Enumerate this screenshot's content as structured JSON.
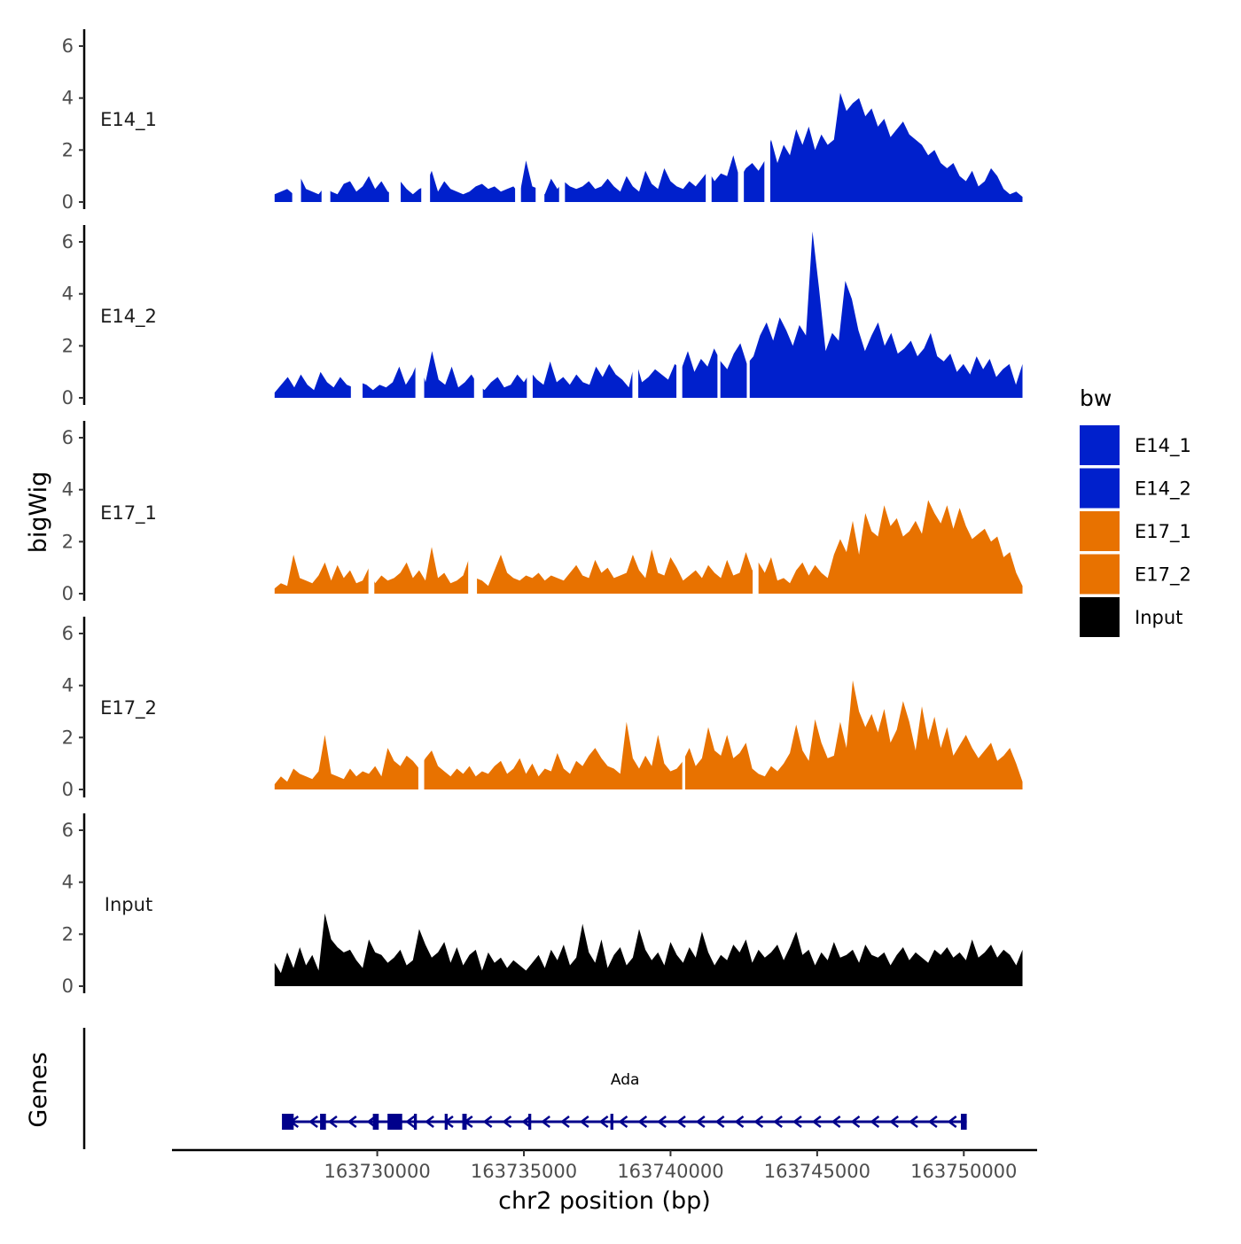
{
  "chart_data": {
    "type": "area",
    "chromosome": "chr2",
    "xlabel": "chr2 position (bp)",
    "ylabel": "bigWig",
    "genes_label": "Genes",
    "xlim": [
      163723000,
      163752500
    ],
    "x_ticks": [
      163730000,
      163735000,
      163740000,
      163745000,
      163750000
    ],
    "x_tick_labels": [
      "163730000",
      "163735000",
      "163740000",
      "163745000",
      "163750000"
    ],
    "ylim": [
      0,
      6.5
    ],
    "y_ticks": [
      0,
      2,
      4,
      6
    ],
    "y_tick_labels": [
      "0",
      "2",
      "4",
      "6"
    ],
    "track_range": [
      163726500,
      163752000
    ],
    "legend": {
      "title": "bw",
      "position": "right",
      "entries": [
        {
          "label": "E14_1",
          "color": "#0020CC"
        },
        {
          "label": "E14_2",
          "color": "#0020CC"
        },
        {
          "label": "E17_1",
          "color": "#E87200"
        },
        {
          "label": "E17_2",
          "color": "#E87200"
        },
        {
          "label": "Input",
          "color": "#000000"
        }
      ]
    },
    "series": [
      {
        "name": "E14_1",
        "color": "#0020CC",
        "values": [
          0.3,
          0.4,
          0.5,
          0.3,
          1.0,
          0.5,
          0.4,
          0.3,
          0.6,
          0.4,
          0.3,
          0.7,
          0.8,
          0.4,
          0.6,
          1.0,
          0.5,
          0.8,
          0.4,
          0.3,
          0.8,
          0.5,
          0.3,
          0.5,
          0.6,
          1.2,
          0.4,
          0.8,
          0.5,
          0.4,
          0.3,
          0.4,
          0.6,
          0.7,
          0.5,
          0.6,
          0.4,
          0.5,
          0.6,
          0.3,
          1.6,
          0.6,
          0.5,
          0.3,
          0.9,
          0.5,
          0.8,
          0.6,
          0.5,
          0.6,
          0.8,
          0.5,
          0.6,
          0.9,
          0.6,
          0.4,
          1.0,
          0.6,
          0.4,
          1.2,
          0.7,
          0.5,
          1.3,
          0.8,
          0.6,
          0.5,
          0.8,
          0.6,
          0.9,
          1.2,
          0.8,
          1.1,
          1.0,
          1.8,
          0.9,
          1.3,
          1.5,
          1.2,
          1.6,
          2.4,
          1.5,
          2.2,
          1.8,
          2.8,
          2.2,
          2.9,
          2.0,
          2.6,
          2.2,
          2.4,
          4.2,
          3.5,
          3.8,
          4.0,
          3.3,
          3.6,
          2.9,
          3.2,
          2.5,
          2.8,
          3.1,
          2.6,
          2.4,
          2.2,
          1.8,
          2.0,
          1.5,
          1.3,
          1.5,
          1.0,
          0.8,
          1.2,
          0.6,
          0.8,
          1.3,
          1.0,
          0.5,
          0.3,
          0.4,
          0.2
        ],
        "gaps": [
          [
            163727100,
            163727400
          ],
          [
            163728100,
            163728400
          ],
          [
            163730400,
            163730800
          ],
          [
            163731500,
            163731800
          ],
          [
            163734700,
            163734900
          ],
          [
            163735400,
            163735700
          ],
          [
            163736200,
            163736400
          ],
          [
            163741200,
            163741400
          ],
          [
            163742300,
            163742500
          ],
          [
            163743200,
            163743400
          ]
        ]
      },
      {
        "name": "E14_2",
        "color": "#0020CC",
        "values": [
          0.2,
          0.5,
          0.8,
          0.4,
          0.9,
          0.5,
          0.3,
          1.0,
          0.6,
          0.4,
          0.8,
          0.5,
          0.4,
          0.6,
          0.5,
          0.3,
          0.5,
          0.4,
          0.6,
          1.2,
          0.5,
          0.9,
          1.5,
          0.6,
          1.8,
          0.7,
          0.5,
          1.2,
          0.4,
          0.6,
          0.9,
          0.5,
          0.3,
          0.6,
          0.8,
          0.4,
          0.5,
          0.9,
          0.6,
          1.0,
          0.7,
          0.5,
          1.4,
          0.6,
          0.8,
          0.5,
          0.9,
          0.6,
          0.5,
          1.2,
          0.8,
          1.3,
          0.9,
          0.7,
          0.4,
          1.5,
          0.6,
          0.8,
          1.1,
          0.9,
          0.7,
          1.3,
          1.1,
          1.8,
          1.0,
          1.5,
          1.2,
          1.9,
          1.4,
          1.1,
          1.7,
          2.1,
          1.3,
          1.6,
          2.4,
          2.9,
          2.2,
          3.1,
          2.6,
          2.0,
          2.8,
          2.4,
          6.4,
          4.2,
          1.8,
          2.5,
          2.2,
          4.5,
          3.8,
          2.6,
          1.8,
          2.4,
          2.9,
          2.0,
          2.5,
          1.7,
          1.9,
          2.2,
          1.6,
          1.9,
          2.5,
          1.6,
          1.4,
          1.7,
          1.0,
          1.3,
          0.9,
          1.6,
          1.1,
          1.5,
          0.8,
          1.1,
          1.3,
          0.5,
          1.3
        ],
        "gaps": [
          [
            163729100,
            163729500
          ],
          [
            163731300,
            163731600
          ],
          [
            163733300,
            163733600
          ],
          [
            163735100,
            163735300
          ],
          [
            163738700,
            163738900
          ],
          [
            163740200,
            163740400
          ],
          [
            163741600,
            163741700
          ],
          [
            163742600,
            163742700
          ]
        ]
      },
      {
        "name": "E17_1",
        "color": "#E87200",
        "values": [
          0.2,
          0.4,
          0.3,
          1.5,
          0.6,
          0.5,
          0.4,
          0.7,
          1.2,
          0.5,
          1.1,
          0.6,
          0.9,
          0.4,
          0.5,
          1.0,
          0.4,
          0.7,
          0.5,
          0.6,
          0.8,
          1.2,
          0.6,
          0.9,
          0.5,
          1.8,
          0.6,
          0.8,
          0.4,
          0.5,
          0.7,
          1.4,
          0.6,
          0.5,
          0.3,
          0.9,
          1.5,
          0.8,
          0.6,
          0.5,
          0.7,
          0.6,
          0.8,
          0.5,
          0.7,
          0.6,
          0.5,
          0.8,
          1.1,
          0.7,
          0.6,
          1.3,
          0.8,
          1.0,
          0.6,
          0.7,
          0.8,
          1.5,
          0.9,
          0.6,
          1.7,
          0.8,
          0.7,
          1.4,
          1.0,
          0.5,
          0.7,
          0.9,
          0.6,
          1.1,
          0.8,
          0.6,
          1.3,
          0.7,
          0.8,
          1.6,
          0.9,
          1.2,
          0.8,
          1.4,
          0.5,
          0.6,
          0.4,
          0.9,
          1.2,
          0.7,
          1.1,
          0.8,
          0.6,
          1.5,
          2.1,
          1.6,
          2.8,
          1.5,
          3.1,
          2.4,
          2.2,
          3.4,
          2.6,
          2.9,
          2.2,
          2.4,
          2.8,
          2.3,
          3.6,
          3.1,
          2.7,
          3.4,
          2.5,
          3.3,
          2.6,
          2.1,
          2.3,
          2.5,
          2.0,
          2.2,
          1.4,
          1.6,
          0.8,
          0.3
        ],
        "gaps": [
          [
            163729700,
            163729900
          ],
          [
            163733100,
            163733400
          ],
          [
            163742800,
            163743000
          ]
        ]
      },
      {
        "name": "E17_2",
        "color": "#E87200",
        "values": [
          0.2,
          0.5,
          0.3,
          0.8,
          0.6,
          0.5,
          0.4,
          0.7,
          2.1,
          0.6,
          0.5,
          0.4,
          0.8,
          0.5,
          0.7,
          0.6,
          0.9,
          0.5,
          1.6,
          1.1,
          0.9,
          1.3,
          1.1,
          0.8,
          1.2,
          1.5,
          0.9,
          0.7,
          0.5,
          0.8,
          0.6,
          0.9,
          0.5,
          0.7,
          0.6,
          0.9,
          1.1,
          0.6,
          0.8,
          1.2,
          0.6,
          1.0,
          0.5,
          0.8,
          0.7,
          1.4,
          0.8,
          0.6,
          1.1,
          0.9,
          1.3,
          1.6,
          1.2,
          0.9,
          0.8,
          0.6,
          2.6,
          1.2,
          0.8,
          1.3,
          0.9,
          2.1,
          1.0,
          0.7,
          0.8,
          1.1,
          1.6,
          0.9,
          1.2,
          2.4,
          1.5,
          1.3,
          2.1,
          1.2,
          1.4,
          1.8,
          0.8,
          0.6,
          0.5,
          0.9,
          0.7,
          1.0,
          1.4,
          2.5,
          1.5,
          1.1,
          2.7,
          1.8,
          1.2,
          1.3,
          2.6,
          1.6,
          4.2,
          3.0,
          2.4,
          2.9,
          2.2,
          3.1,
          1.8,
          2.3,
          3.4,
          2.6,
          1.5,
          3.2,
          1.9,
          2.8,
          1.6,
          2.4,
          1.3,
          1.7,
          2.1,
          1.6,
          1.2,
          1.5,
          1.8,
          1.1,
          1.3,
          1.6,
          1.0,
          0.3
        ],
        "gaps": [
          [
            163731400,
            163731600
          ],
          [
            163740400,
            163740500
          ]
        ]
      },
      {
        "name": "Input",
        "color": "#000000",
        "values": [
          0.9,
          0.5,
          1.3,
          0.7,
          1.5,
          0.8,
          1.2,
          0.6,
          2.8,
          1.8,
          1.5,
          1.3,
          1.4,
          1.0,
          0.7,
          1.8,
          1.3,
          1.2,
          0.9,
          1.1,
          1.4,
          0.8,
          1.0,
          2.2,
          1.6,
          1.1,
          1.3,
          1.7,
          0.9,
          1.5,
          0.8,
          1.2,
          1.4,
          0.6,
          1.3,
          0.9,
          1.1,
          0.7,
          1.0,
          0.8,
          0.6,
          0.9,
          1.2,
          0.7,
          1.4,
          1.0,
          1.6,
          0.8,
          1.1,
          2.4,
          1.3,
          0.9,
          1.8,
          0.7,
          1.2,
          1.5,
          0.8,
          1.1,
          2.2,
          1.4,
          1.0,
          1.3,
          0.8,
          1.7,
          1.2,
          0.9,
          1.5,
          1.1,
          2.1,
          1.3,
          0.8,
          1.2,
          1.0,
          1.6,
          1.3,
          1.8,
          0.9,
          1.4,
          1.1,
          1.3,
          1.6,
          1.0,
          1.5,
          2.1,
          1.2,
          1.4,
          0.8,
          1.3,
          1.0,
          1.7,
          1.1,
          1.2,
          1.4,
          0.9,
          1.6,
          1.2,
          1.1,
          1.3,
          0.8,
          1.2,
          1.5,
          1.0,
          1.3,
          1.1,
          0.9,
          1.4,
          1.2,
          1.5,
          1.1,
          1.3,
          1.0,
          1.8,
          1.1,
          1.3,
          1.6,
          1.1,
          1.4,
          1.2,
          0.8,
          1.4
        ],
        "gaps": []
      }
    ],
    "gene": {
      "name": "Ada",
      "strand": "-",
      "start": 163726800,
      "end": 163750100,
      "color": "#00008B",
      "exons": [
        [
          163726750,
          163727150
        ],
        [
          163728050,
          163728250
        ],
        [
          163729850,
          163730050
        ],
        [
          163730350,
          163730850
        ],
        [
          163731250,
          163731350
        ],
        [
          163732300,
          163732400
        ],
        [
          163732900,
          163733050
        ],
        [
          163735150,
          163735250
        ],
        [
          163737950,
          163738050
        ],
        [
          163749900,
          163750100
        ]
      ]
    }
  }
}
